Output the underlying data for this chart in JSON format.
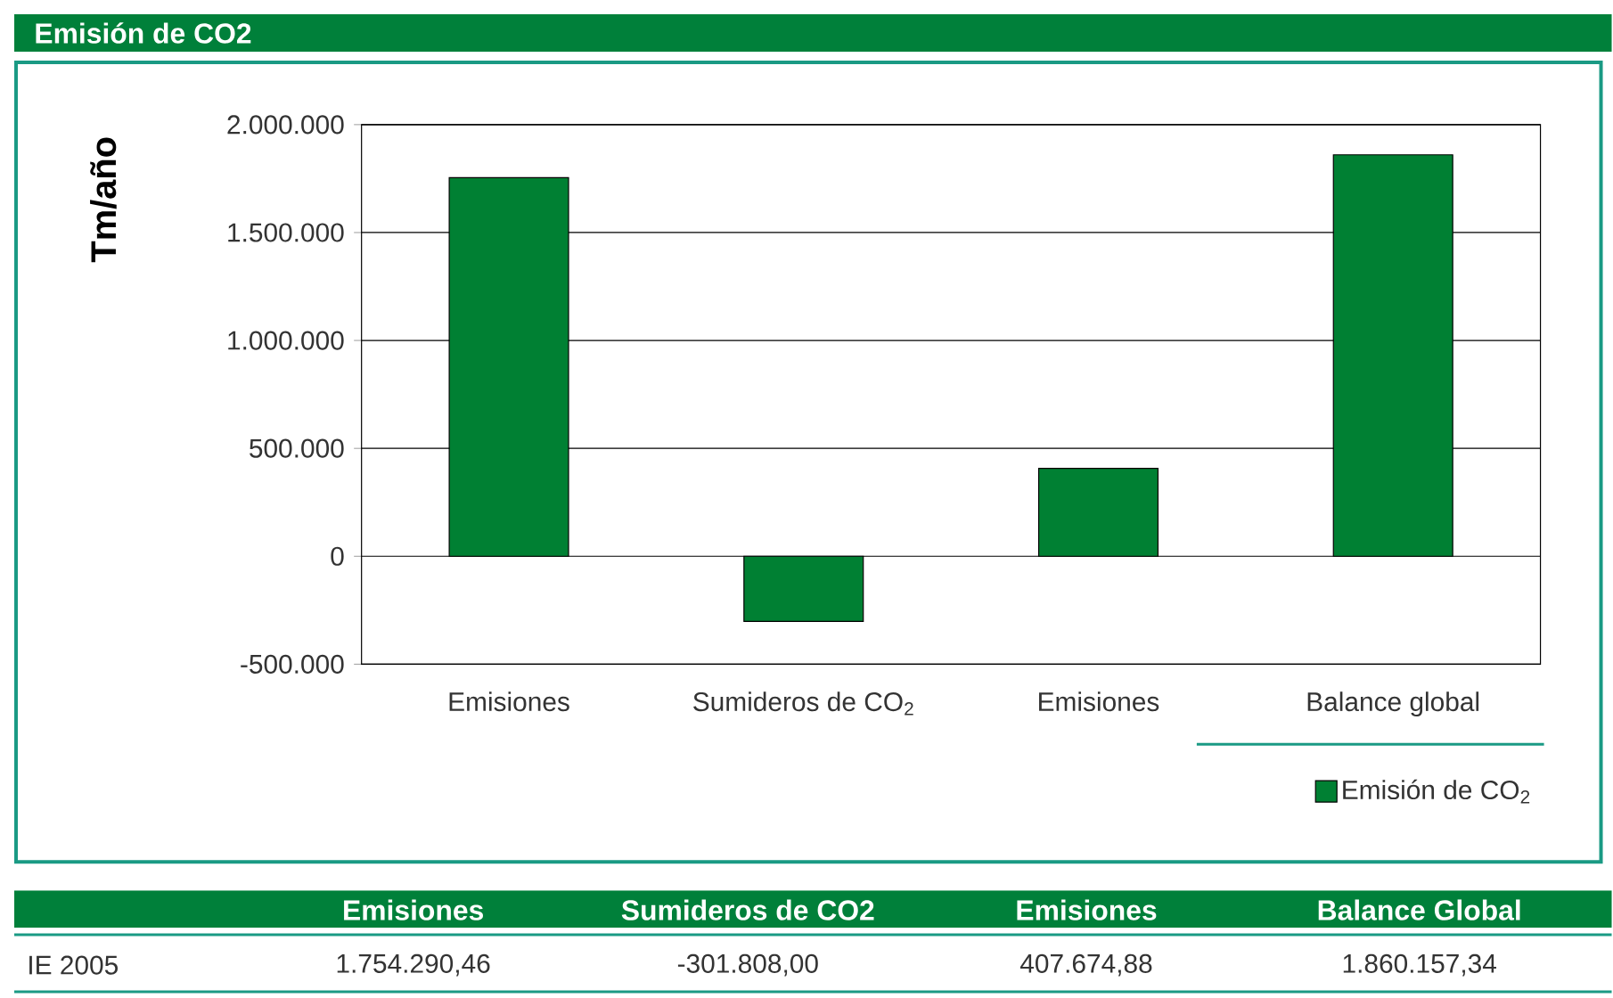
{
  "chart_data": {
    "type": "bar",
    "title": "Emisión de CO2",
    "ylabel": "Tm/año",
    "categories": [
      "Emisiones",
      "Sumideros de CO$_{2}$",
      "Emisiones",
      "Balance global"
    ],
    "series": [
      {
        "name": "Emisión de CO$_{2}$",
        "color": "#008033",
        "values": [
          1754290.46,
          -301808.0,
          407674.88,
          1860157.34
        ],
        "value_labels": [
          "1.754.290,46",
          "-301.808,00",
          "407.674,88",
          "1.860.157,34"
        ]
      }
    ],
    "ylim": [
      -500000,
      2000000
    ],
    "yticks": [
      {
        "value": -500000,
        "label": "-500.000"
      },
      0,
      {
        "value": 500000,
        "label": "500.000"
      },
      {
        "value": 1000000,
        "label": "1.000.000"
      },
      {
        "value": 1500000,
        "label": "1.500.000"
      },
      {
        "value": 2000000,
        "label": "2.000.000"
      }
    ],
    "grid": "y",
    "legend": "bottom right",
    "annotations": [
      "Emisiones",
      "Sumideros de CO2",
      "Emisiones",
      "Balance Global",
      "IE 2005"
    ]
  }
}
